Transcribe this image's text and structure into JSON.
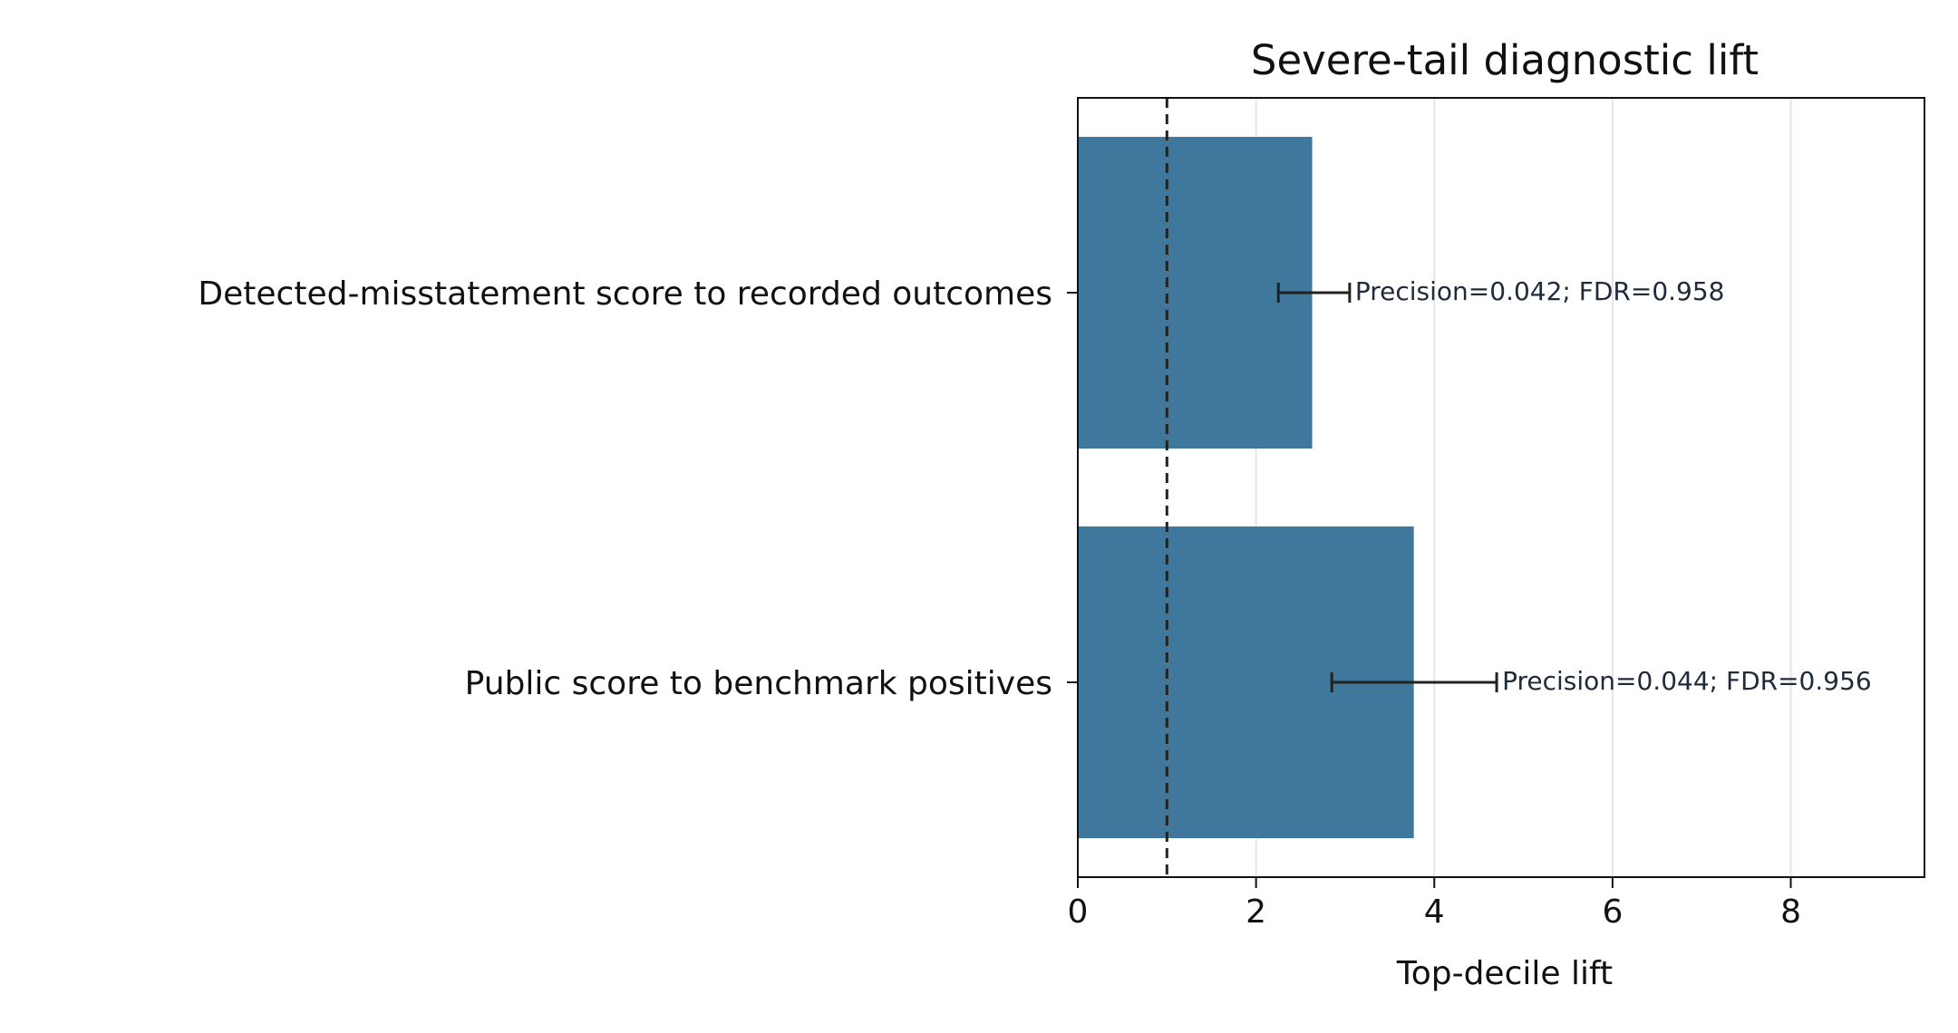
{
  "chart_data": {
    "type": "bar",
    "orientation": "horizontal",
    "title": "Severe-tail diagnostic lift",
    "xlabel": "Top-decile lift",
    "ylabel": "",
    "xlim": [
      0,
      9.5
    ],
    "xticks": [
      0,
      2,
      4,
      6,
      8
    ],
    "grid": "x",
    "reference_line": {
      "x": 1,
      "style": "dashed"
    },
    "categories": [
      "Detected-misstatement score to recorded outcomes",
      "Public score to benchmark positives"
    ],
    "values": [
      2.63,
      3.77
    ],
    "error_low": [
      2.25,
      2.85
    ],
    "error_high": [
      3.05,
      4.7
    ],
    "annotations": [
      "Precision=0.042; FDR=0.958",
      "Precision=0.044; FDR=0.956"
    ],
    "colors": {
      "bar": "#3f789c",
      "error": "#222222",
      "grid": "#e5e5e5",
      "reference": "#222222"
    }
  }
}
